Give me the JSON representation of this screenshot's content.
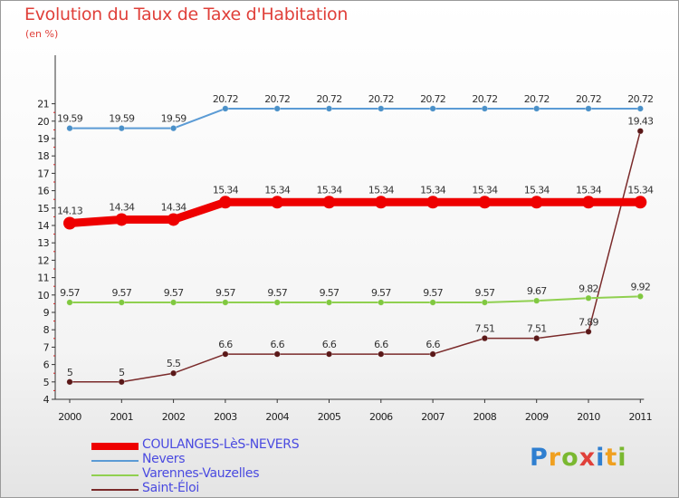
{
  "title": "Evolution du Taux de Taxe d'Habitation",
  "subtitle": "(en %)",
  "logo": {
    "text": "Proxiti",
    "colors": [
      "#2f7fd0",
      "#f0a020",
      "#7ab830",
      "#e0403a",
      "#2f7fd0",
      "#f0a020",
      "#7ab830"
    ]
  },
  "chart_data": {
    "type": "line",
    "title": "Evolution du Taux de Taxe d'Habitation",
    "ylabel": "(en %)",
    "xlabel": "",
    "x": [
      "2000",
      "2001",
      "2002",
      "2003",
      "2004",
      "2005",
      "2006",
      "2007",
      "2008",
      "2009",
      "2010",
      "2011"
    ],
    "ylim": [
      4,
      21
    ],
    "yticks": [
      "4",
      "5",
      "6",
      "7",
      "8",
      "9",
      "10",
      "11",
      "12",
      "13",
      "14",
      "15",
      "16",
      "17",
      "18",
      "19",
      "20",
      "21"
    ],
    "grid": false,
    "legend_position": "bottom-left",
    "series": [
      {
        "name": "COULANGES-LèS-NEVERS",
        "color": "#ee0000",
        "values": [
          14.13,
          14.34,
          14.34,
          15.34,
          15.34,
          15.34,
          15.34,
          15.34,
          15.34,
          15.34,
          15.34,
          15.34
        ],
        "labels": [
          "14.13",
          "14.34",
          "14.34",
          "15.34",
          "15.34",
          "15.34",
          "15.34",
          "15.34",
          "15.34",
          "15.34",
          "15.34",
          "15.34"
        ]
      },
      {
        "name": "Nevers",
        "color": "#5b9bd5",
        "values": [
          19.59,
          19.59,
          19.59,
          20.72,
          20.72,
          20.72,
          20.72,
          20.72,
          20.72,
          20.72,
          20.72,
          20.72
        ],
        "labels": [
          "19.59",
          "19.59",
          "19.59",
          "20.72",
          "20.72",
          "20.72",
          "20.72",
          "20.72",
          "20.72",
          "20.72",
          "20.72",
          "20.72"
        ]
      },
      {
        "name": "Varennes-Vauzelles",
        "color": "#90d050",
        "values": [
          9.57,
          9.57,
          9.57,
          9.57,
          9.57,
          9.57,
          9.57,
          9.57,
          9.57,
          9.67,
          9.82,
          9.92
        ],
        "labels": [
          "9.57",
          "9.57",
          "9.57",
          "9.57",
          "9.57",
          "9.57",
          "9.57",
          "9.57",
          "9.57",
          "9.67",
          "9.82",
          "9.92"
        ]
      },
      {
        "name": "Saint-Éloi",
        "color": "#7a2a2a",
        "values": [
          5,
          5,
          5.5,
          6.6,
          6.6,
          6.6,
          6.6,
          6.6,
          7.51,
          7.51,
          7.89,
          19.43
        ],
        "labels": [
          "5",
          "5",
          "5.5",
          "6.6",
          "6.6",
          "6.6",
          "6.6",
          "6.6",
          "7.51",
          "7.51",
          "7.89",
          "19.43"
        ]
      }
    ]
  }
}
